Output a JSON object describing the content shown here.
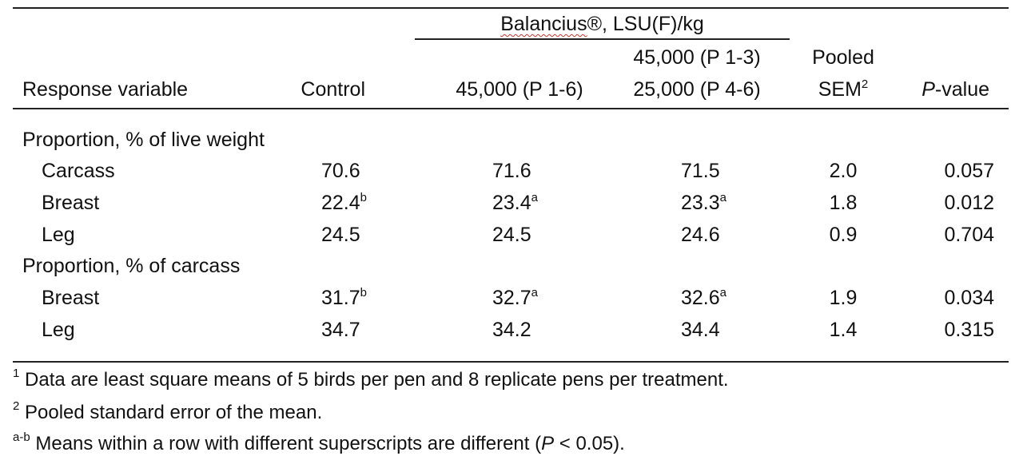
{
  "header": {
    "group_label_brand": "Balancius",
    "group_label_reg": "®",
    "group_label_rest": ", LSU(F)/kg",
    "col_response": "Response variable",
    "col_control": "Control",
    "col_45k": "45,000 (P 1-6)",
    "col_step_line1": "45,000 (P 1-3)",
    "col_step_line2": "25,000 (P 4-6)",
    "col_sem_line1": "Pooled",
    "col_sem_line2": "SEM",
    "col_sem_sup": "2",
    "col_p_italic": "P",
    "col_p_rest": "-value"
  },
  "sections": [
    {
      "title": "Proportion, % of live weight",
      "rows": [
        {
          "label": "Carcass",
          "control": "70.6",
          "control_sup": "",
          "t1": "71.6",
          "t1_sup": "",
          "t2": "71.5",
          "t2_sup": "",
          "sem": "2.0",
          "p": "0.057"
        },
        {
          "label": "Breast",
          "control": "22.4",
          "control_sup": "b",
          "t1": "23.4",
          "t1_sup": "a",
          "t2": "23.3",
          "t2_sup": "a",
          "sem": "1.8",
          "p": "0.012"
        },
        {
          "label": "Leg",
          "control": "24.5",
          "control_sup": "",
          "t1": "24.5",
          "t1_sup": "",
          "t2": "24.6",
          "t2_sup": "",
          "sem": "0.9",
          "p": "0.704"
        }
      ]
    },
    {
      "title": "Proportion, % of carcass",
      "rows": [
        {
          "label": "Breast",
          "control": "31.7",
          "control_sup": "b",
          "t1": "32.7",
          "t1_sup": "a",
          "t2": "32.6",
          "t2_sup": "a",
          "sem": "1.9",
          "p": "0.034"
        },
        {
          "label": "Leg",
          "control": "34.7",
          "control_sup": "",
          "t1": "34.2",
          "t1_sup": "",
          "t2": "34.4",
          "t2_sup": "",
          "sem": "1.4",
          "p": "0.315"
        }
      ]
    }
  ],
  "footnotes": {
    "fn1_sup": "1",
    "fn1_text": " Data are least square means of 5 birds per pen and 8 replicate pens per treatment.",
    "fn2_sup": "2",
    "fn2_text": " Pooled standard error of the mean.",
    "fn3_sup": "a-b",
    "fn3_text_a": " Means within a row with different superscripts are different (",
    "fn3_italic": "P",
    "fn3_text_b": " < 0.05)."
  }
}
